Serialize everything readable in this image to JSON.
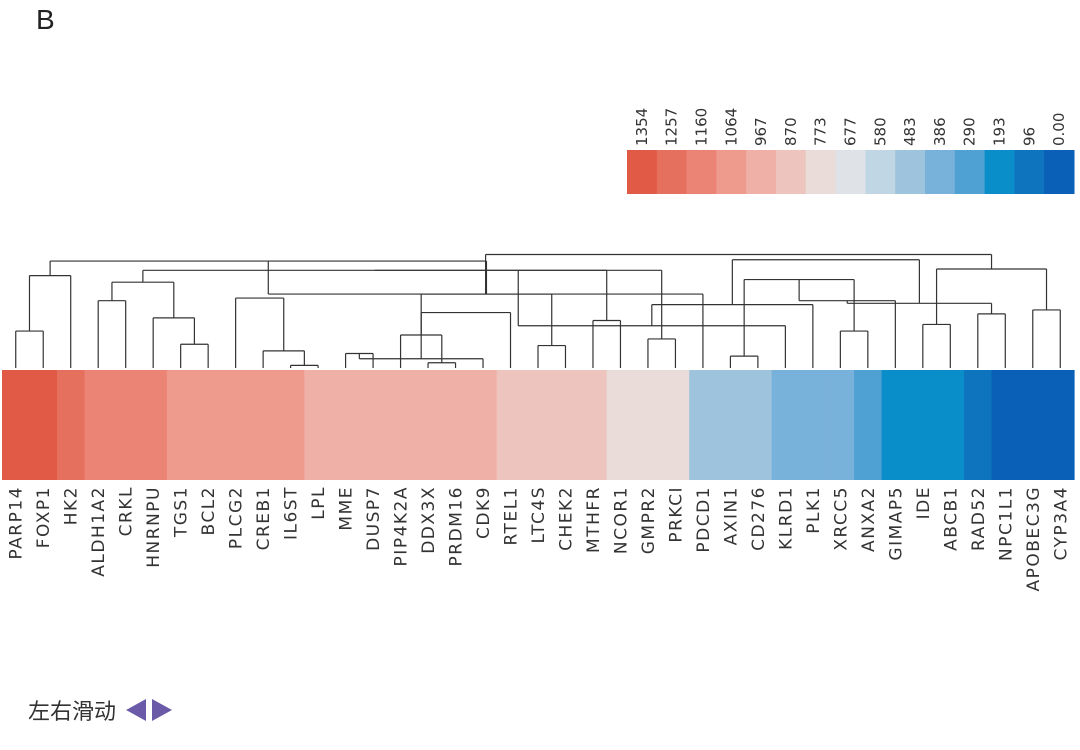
{
  "panel_label": "B",
  "chart_data": {
    "type": "heatmap",
    "title": "",
    "genes": [
      "PARP14",
      "FOXP1",
      "HK2",
      "ALDH1A2",
      "CRKL",
      "HNRNPU",
      "TGS1",
      "BCL2",
      "PLCG2",
      "CREB1",
      "IL6ST",
      "LPL",
      "MME",
      "DUSP7",
      "PIP4K2A",
      "DDX3X",
      "PRDM16",
      "CDK9",
      "RTEL1",
      "LTC4S",
      "CHEK2",
      "MTHFR",
      "NCOR1",
      "GMPR2",
      "PRKCI",
      "PDCD1",
      "AXIN1",
      "CD276",
      "KLRD1",
      "PLK1",
      "XRCC5",
      "ANXA2",
      "GIMAP5",
      "IDE",
      "ABCB1",
      "RAD52",
      "NPC1L1",
      "APOBEC3G",
      "CYP3A4"
    ],
    "values": [
      1354,
      1354,
      1257,
      1160,
      1160,
      1160,
      1064,
      1064,
      1064,
      1064,
      1064,
      967,
      967,
      967,
      967,
      967,
      967,
      967,
      870,
      870,
      870,
      870,
      773,
      773,
      773,
      483,
      483,
      483,
      386,
      386,
      386,
      290,
      193,
      193,
      193,
      96,
      0,
      0,
      0
    ],
    "color_scale": {
      "ticks": [
        "1354",
        "1257",
        "1160",
        "1064",
        "967",
        "870",
        "773",
        "677",
        "580",
        "483",
        "386",
        "290",
        "193",
        "96",
        "0.00"
      ],
      "colors": [
        "#e15a45",
        "#e6705e",
        "#eb8475",
        "#ee9b8e",
        "#efb1a7",
        "#edc5be",
        "#eadcd9",
        "#dfe3e7",
        "#c1d6e4",
        "#9ec3dd",
        "#78b1d9",
        "#4fa1d4",
        "#0a8ec9",
        "#0e74bd",
        "#0a5fb7"
      ]
    },
    "dendrogram_merges": [
      [
        0,
        1,
        0.28
      ],
      [
        2,
        39,
        0.7
      ],
      [
        3,
        4,
        0.51
      ],
      [
        6,
        7,
        0.18
      ],
      [
        5,
        42,
        0.38
      ],
      [
        41,
        43,
        0.65
      ],
      [
        10,
        11,
        0.02
      ],
      [
        9,
        45,
        0.13
      ],
      [
        8,
        46,
        0.53
      ],
      [
        12,
        13,
        0.11
      ],
      [
        15,
        16,
        0.04
      ],
      [
        48,
        17,
        0.07
      ],
      [
        14,
        49,
        0.25
      ],
      [
        50,
        18,
        0.42
      ],
      [
        19,
        20,
        0.17
      ],
      [
        21,
        22,
        0.36
      ],
      [
        51,
        53,
        0.56
      ],
      [
        44,
        54,
        0.74
      ],
      [
        40,
        55,
        0.81
      ],
      [
        23,
        24,
        0.22
      ],
      [
        25,
        57,
        0.56
      ],
      [
        56,
        58,
        0.74
      ],
      [
        26,
        27,
        0.09
      ],
      [
        60,
        28,
        0.32
      ],
      [
        30,
        31,
        0.28
      ],
      [
        29,
        62,
        0.48
      ],
      [
        61,
        63,
        0.67
      ],
      [
        33,
        34,
        0.33
      ],
      [
        32,
        65,
        0.51
      ],
      [
        35,
        36,
        0.41
      ],
      [
        37,
        38,
        0.44
      ],
      [
        67,
        68,
        0.49
      ],
      [
        66,
        69,
        0.75
      ],
      [
        64,
        70,
        0.82
      ],
      [
        59,
        71,
        0.86
      ]
    ]
  },
  "scroll_hint": {
    "text": "左右滑动"
  }
}
